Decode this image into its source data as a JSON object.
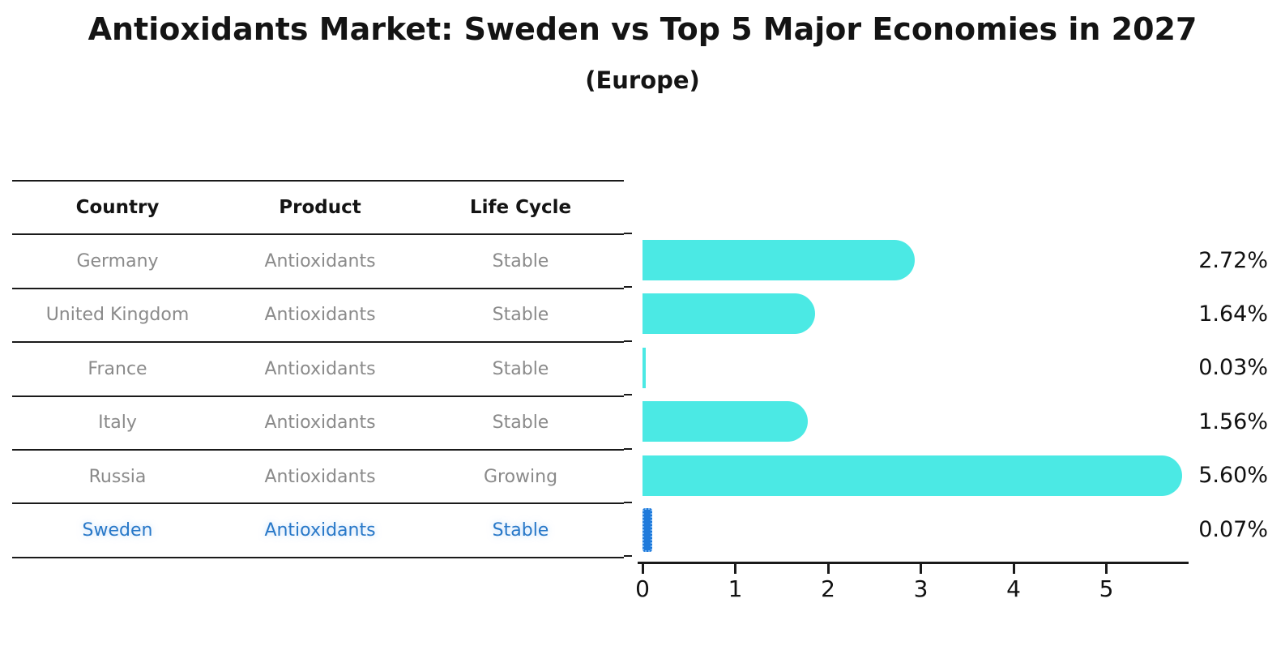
{
  "title": "Antioxidants Market: Sweden vs Top 5 Major Economies in 2027",
  "subtitle": "(Europe)",
  "table": {
    "headers": [
      "Country",
      "Product",
      "Life Cycle"
    ],
    "rows": [
      {
        "country": "Germany",
        "product": "Antioxidants",
        "life_cycle": "Stable",
        "highlight": false
      },
      {
        "country": "United Kingdom",
        "product": "Antioxidants",
        "life_cycle": "Stable",
        "highlight": false
      },
      {
        "country": "France",
        "product": "Antioxidants",
        "life_cycle": "Stable",
        "highlight": false
      },
      {
        "country": "Italy",
        "product": "Antioxidants",
        "life_cycle": "Stable",
        "highlight": false
      },
      {
        "country": "Russia",
        "product": "Antioxidants",
        "life_cycle": "Growing",
        "highlight": false
      },
      {
        "country": "Sweden",
        "product": "Antioxidants",
        "life_cycle": "Stable",
        "highlight": true
      }
    ]
  },
  "chart_data": {
    "type": "bar",
    "orientation": "horizontal",
    "title": "Antioxidants Market: Sweden vs Top 5 Major Economies in 2027",
    "subtitle": "(Europe)",
    "categories": [
      "Germany",
      "United Kingdom",
      "France",
      "Italy",
      "Russia",
      "Sweden"
    ],
    "values": [
      2.72,
      1.64,
      0.03,
      1.56,
      5.6,
      0.07
    ],
    "value_labels": [
      "2.72%",
      "1.64%",
      "0.03%",
      "1.56%",
      "5.60%",
      "0.07%"
    ],
    "unit": "percent",
    "x_tick_labels": [
      "0",
      "1",
      "2",
      "3",
      "4",
      "5"
    ],
    "xlim": [
      0,
      5.9
    ],
    "grid": false,
    "legend": "none",
    "highlight_index": 5,
    "bar_color": "#4be9e4",
    "highlight_bar_color": "#1f7adb"
  },
  "colors": {
    "background": "#ffffff",
    "heading_text": "#141414",
    "table_row_text": "#8a8a8a",
    "highlight_row_text": "#2878c8",
    "axis": "#1a1a1a",
    "bar": "#4be9e4",
    "highlight_bar": "#1f7adb"
  }
}
